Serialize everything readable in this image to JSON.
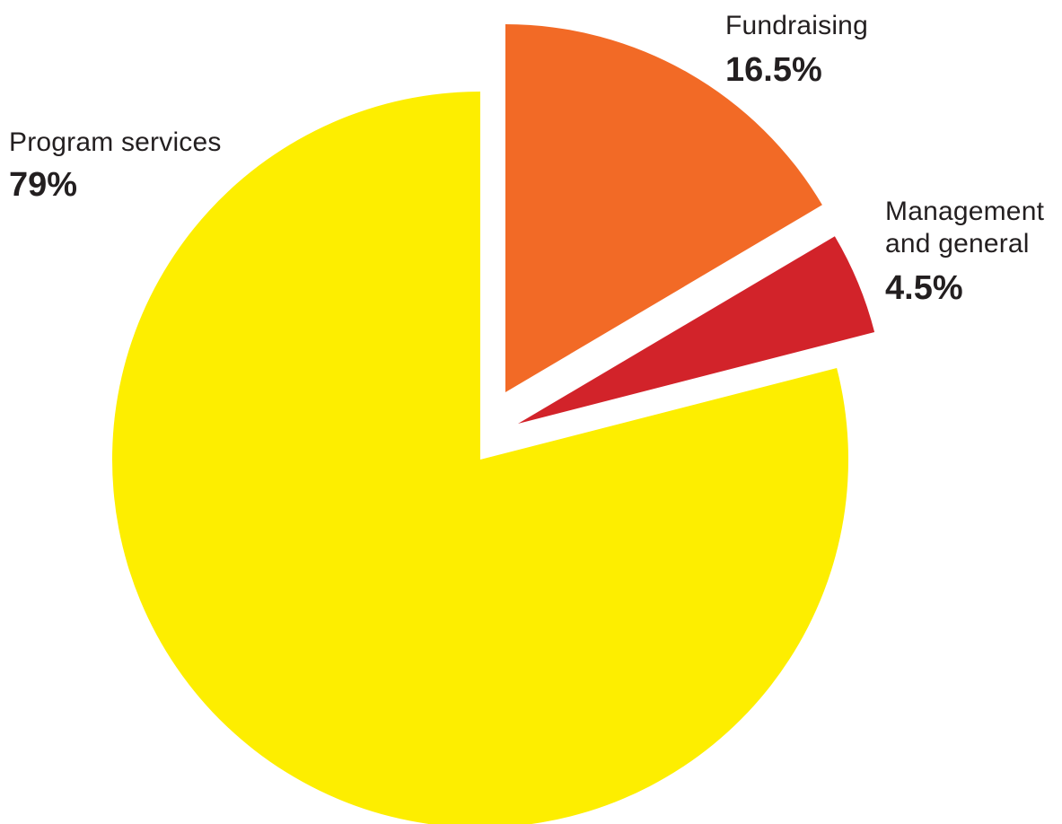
{
  "chart_data": {
    "type": "pie",
    "title": "",
    "slices": [
      {
        "name": "Program services",
        "name_lines": [
          "Program services"
        ],
        "value": 79,
        "value_label": "79%",
        "color": "#FDEE00"
      },
      {
        "name": "Fundraising",
        "name_lines": [
          "Fundraising"
        ],
        "value": 16.5,
        "value_label": "16.5%",
        "color": "#F26A26"
      },
      {
        "name": "Management and general",
        "name_lines": [
          "Management",
          "and general"
        ],
        "value": 4.5,
        "value_label": "4.5%",
        "color": "#D2232A"
      }
    ],
    "exploded_slices": [
      "Fundraising",
      "Management and general"
    ],
    "start": "12 o'clock",
    "direction": "clockwise"
  }
}
